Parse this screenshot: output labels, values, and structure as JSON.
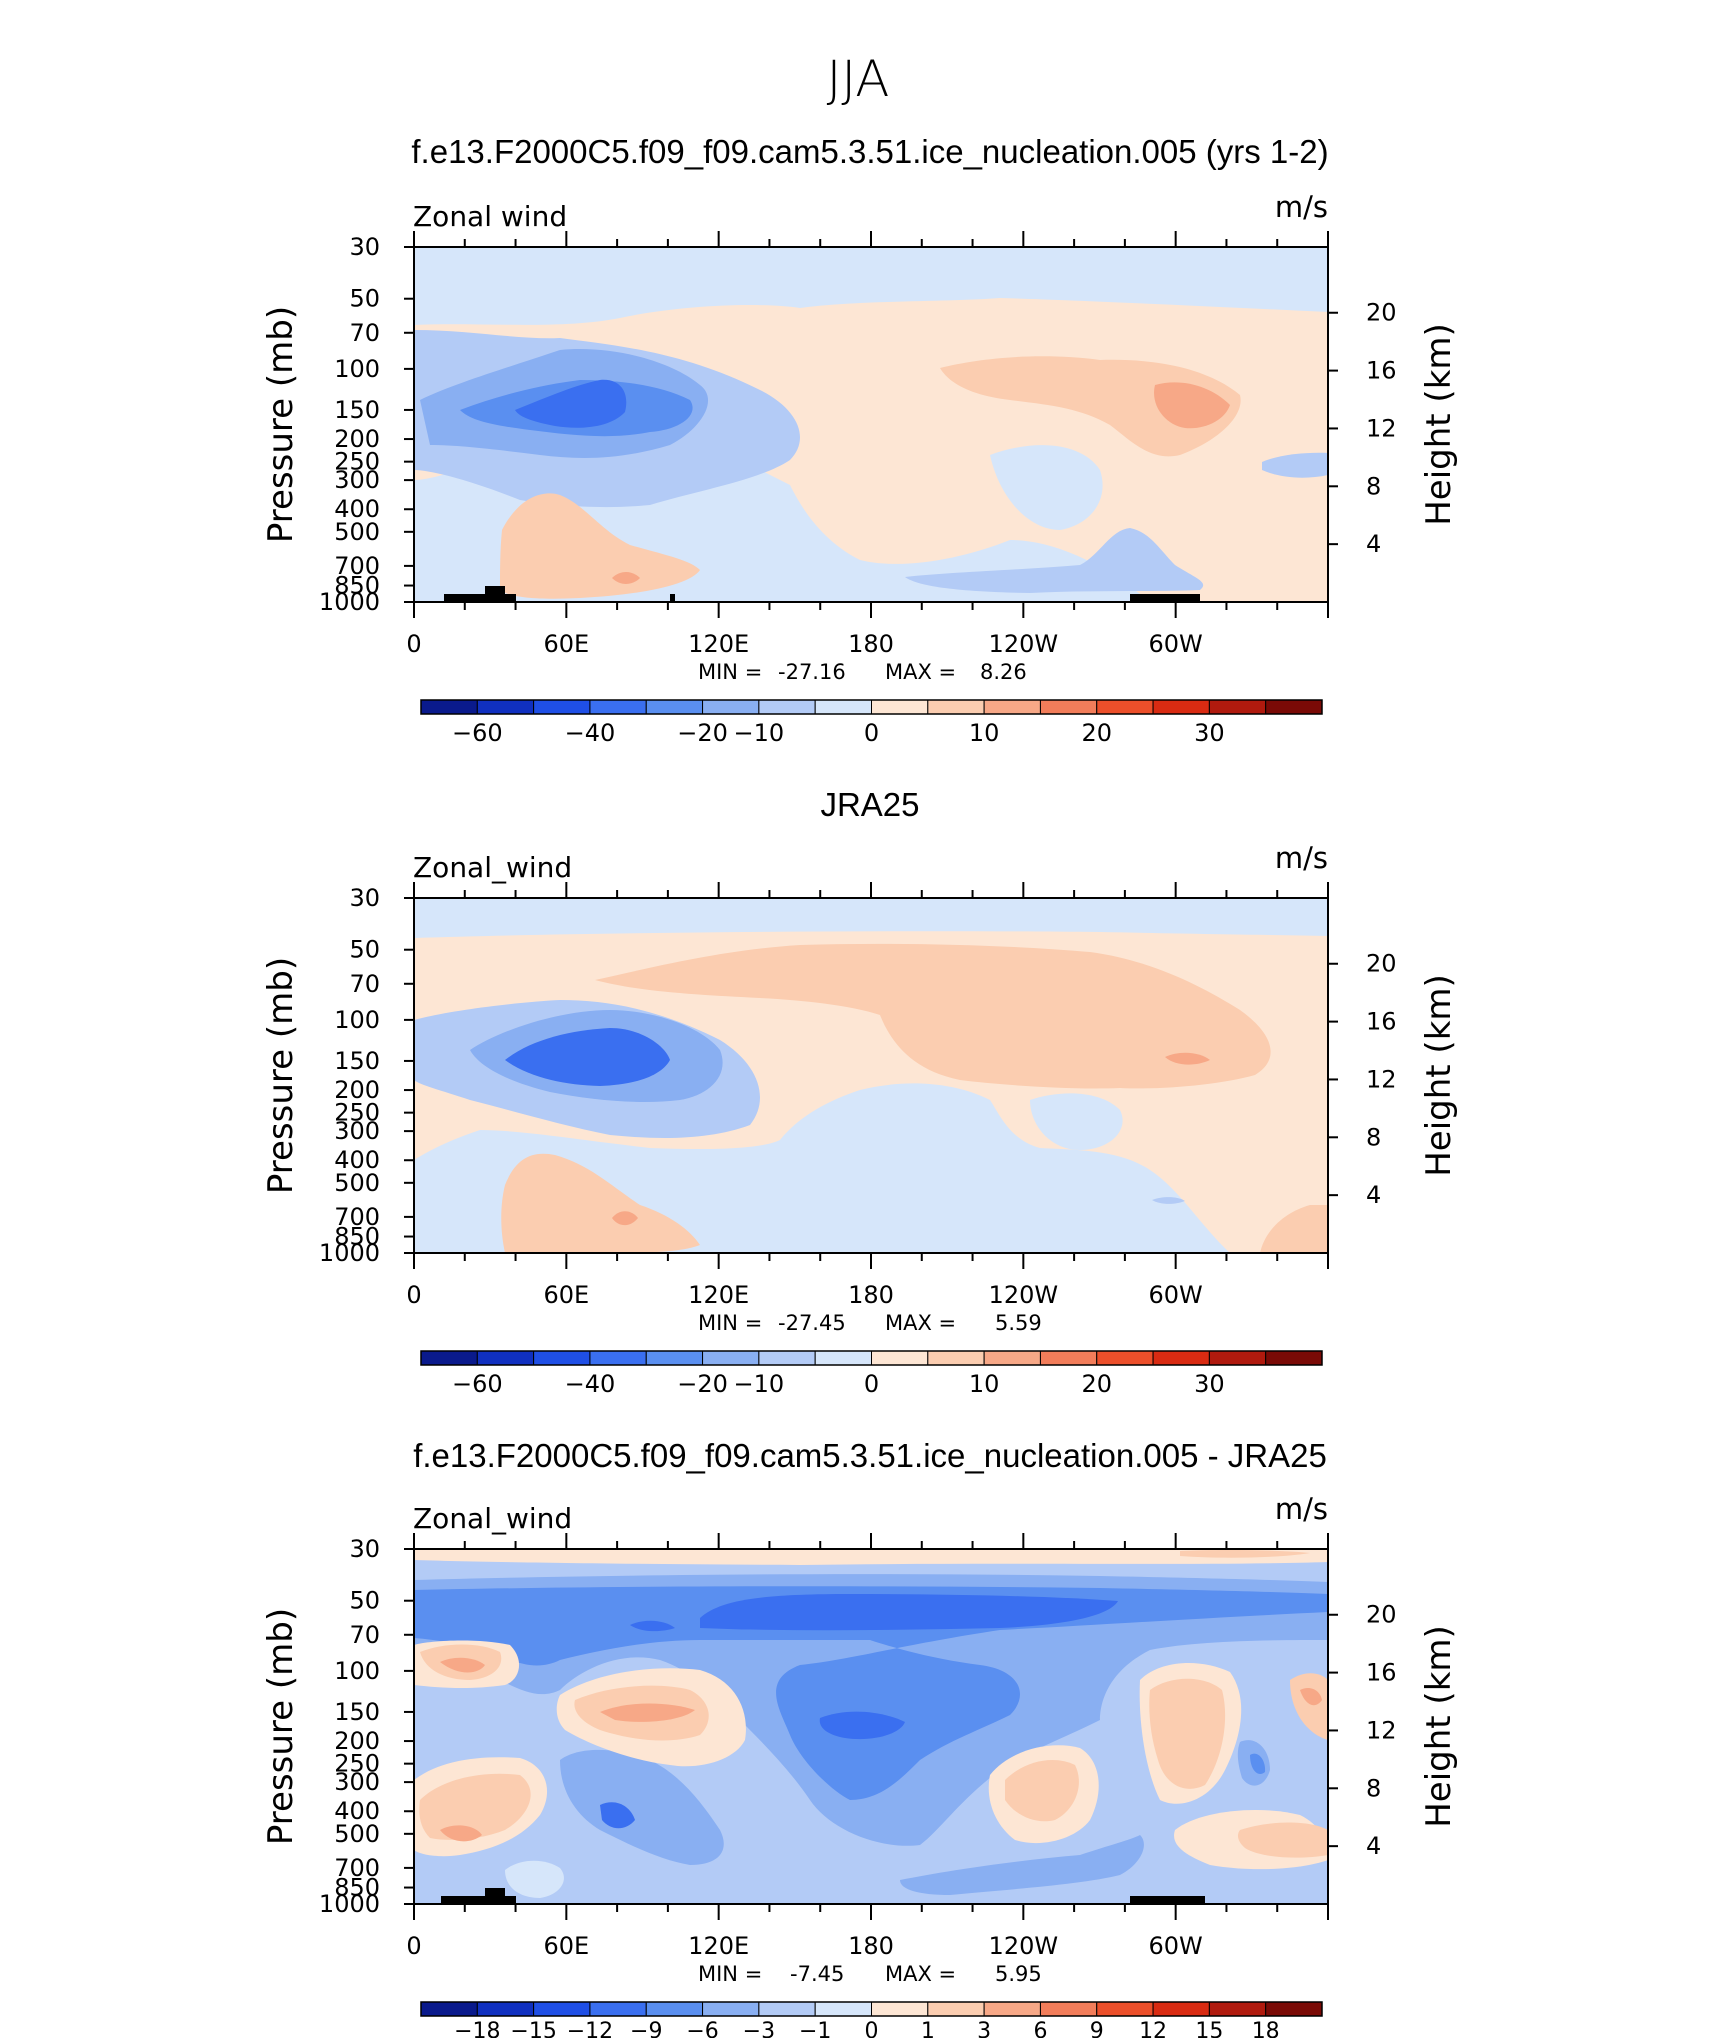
{
  "figure": {
    "title": "JJA",
    "pressure_ticks": [
      "30",
      "50",
      "70",
      "100",
      "150",
      "200",
      "250",
      "300",
      "400",
      "500",
      "700",
      "850",
      "1000"
    ],
    "height_ticks": [
      "20",
      "16",
      "12",
      "8",
      "4"
    ],
    "lon_ticks": [
      "0",
      "60E",
      "120E",
      "180",
      "120W",
      "60W"
    ],
    "y_label_left": "Pressure (mb)",
    "y_label_right": "Height (km)",
    "units": "m/s"
  },
  "panels": [
    {
      "title": "f.e13.F2000C5.f09_f09.cam5.3.51.ice_nucleation.005 (yrs 1-2)",
      "field_label": "Zonal wind",
      "min_label": "MIN =",
      "min_value": "-27.16",
      "max_label": "MAX =",
      "max_value": "8.26",
      "colorbar_labels": [
        "−60",
        "−40",
        "−20",
        "−10",
        "0",
        "10",
        "20",
        "30"
      ]
    },
    {
      "title": "JRA25",
      "field_label": "Zonal_wind",
      "min_label": "MIN =",
      "min_value": "-27.45",
      "max_label": "MAX =",
      "max_value": "5.59",
      "colorbar_labels": [
        "−60",
        "−40",
        "−20",
        "−10",
        "0",
        "10",
        "20",
        "30"
      ]
    },
    {
      "title": "f.e13.F2000C5.f09_f09.cam5.3.51.ice_nucleation.005 - JRA25",
      "field_label": "Zonal_wind",
      "min_label": "MIN =",
      "min_value": "-7.45",
      "max_label": "MAX =",
      "max_value": "5.95",
      "colorbar_labels": [
        "−18",
        "−15",
        "−12",
        "−9",
        "−6",
        "−3",
        "−1",
        "0",
        "1",
        "3",
        "6",
        "9",
        "12",
        "15",
        "18"
      ]
    }
  ],
  "palette": [
    "#0a1a8c",
    "#1030c0",
    "#1f4fe6",
    "#3a6ff0",
    "#5a8ff0",
    "#89aff2",
    "#b3cbf6",
    "#d6e6fa",
    "#fde6d4",
    "#fbcdb0",
    "#f7a887",
    "#f27d5a",
    "#ec4f2a",
    "#d92b12",
    "#b01a0e",
    "#7a0a06"
  ],
  "chart_data": [
    {
      "type": "heatmap",
      "title": "f.e13.F2000C5.f09_f09.cam5.3.51.ice_nucleation.005 (yrs 1-2)",
      "variable": "Zonal wind",
      "units": "m/s",
      "x_axis": {
        "ticks": [
          "0",
          "60E",
          "120E",
          "180",
          "120W",
          "60W"
        ],
        "range_deg_east": [
          0,
          360
        ]
      },
      "y_axis": {
        "label": "Pressure (mb)",
        "ticks": [
          30,
          50,
          70,
          100,
          150,
          200,
          250,
          300,
          400,
          500,
          700,
          850,
          1000
        ],
        "scale": "log",
        "reversed": true
      },
      "y2_axis": {
        "label": "Height (km)",
        "ticks": [
          20,
          16,
          12,
          8,
          4
        ]
      },
      "min": -27.16,
      "max": 8.26,
      "levels": [
        -60,
        -50,
        -40,
        -30,
        -20,
        -15,
        -10,
        -5,
        0,
        5,
        10,
        15,
        20,
        25,
        30
      ],
      "features": [
        {
          "name": "easterly jet core",
          "lon": 70,
          "pressure_mb": 150,
          "value": -25
        },
        {
          "name": "westerly maximum",
          "lon": 290,
          "pressure_mb": 150,
          "value": 8
        },
        {
          "name": "low-level westerlies",
          "lon": 75,
          "pressure_mb": 700,
          "value": 5
        }
      ]
    },
    {
      "type": "heatmap",
      "title": "JRA25",
      "variable": "Zonal_wind",
      "units": "m/s",
      "x_axis": {
        "ticks": [
          "0",
          "60E",
          "120E",
          "180",
          "120W",
          "60W"
        ],
        "range_deg_east": [
          0,
          360
        ]
      },
      "y_axis": {
        "label": "Pressure (mb)",
        "ticks": [
          30,
          50,
          70,
          100,
          150,
          200,
          250,
          300,
          400,
          500,
          700,
          850,
          1000
        ],
        "scale": "log",
        "reversed": true
      },
      "y2_axis": {
        "label": "Height (km)",
        "ticks": [
          20,
          16,
          12,
          8,
          4
        ]
      },
      "min": -27.45,
      "max": 5.59,
      "levels": [
        -60,
        -50,
        -40,
        -30,
        -20,
        -15,
        -10,
        -5,
        0,
        5,
        10,
        15,
        20,
        25,
        30
      ],
      "features": [
        {
          "name": "easterly jet core",
          "lon": 80,
          "pressure_mb": 150,
          "value": -25
        },
        {
          "name": "westerly maximum",
          "lon": 300,
          "pressure_mb": 150,
          "value": 5
        }
      ]
    },
    {
      "type": "heatmap",
      "title": "f.e13.F2000C5.f09_f09.cam5.3.51.ice_nucleation.005 - JRA25",
      "variable": "Zonal_wind",
      "units": "m/s",
      "x_axis": {
        "ticks": [
          "0",
          "60E",
          "120E",
          "180",
          "120W",
          "60W"
        ],
        "range_deg_east": [
          0,
          360
        ]
      },
      "y_axis": {
        "label": "Pressure (mb)",
        "ticks": [
          30,
          50,
          70,
          100,
          150,
          200,
          250,
          300,
          400,
          500,
          700,
          850,
          1000
        ],
        "scale": "log",
        "reversed": true
      },
      "y2_axis": {
        "label": "Height (km)",
        "ticks": [
          20,
          16,
          12,
          8,
          4
        ]
      },
      "min": -7.45,
      "max": 5.95,
      "levels": [
        -18,
        -15,
        -12,
        -9,
        -6,
        -3,
        -1,
        0,
        1,
        3,
        6,
        9,
        12,
        15,
        18
      ],
      "features": [
        {
          "name": "negative bias band",
          "lon": 200,
          "pressure_mb": 60,
          "value": -6
        },
        {
          "name": "negative bias core",
          "lon": 170,
          "pressure_mb": 160,
          "value": -6
        },
        {
          "name": "positive bias",
          "lon": 300,
          "pressure_mb": 180,
          "value": 3
        }
      ]
    }
  ]
}
